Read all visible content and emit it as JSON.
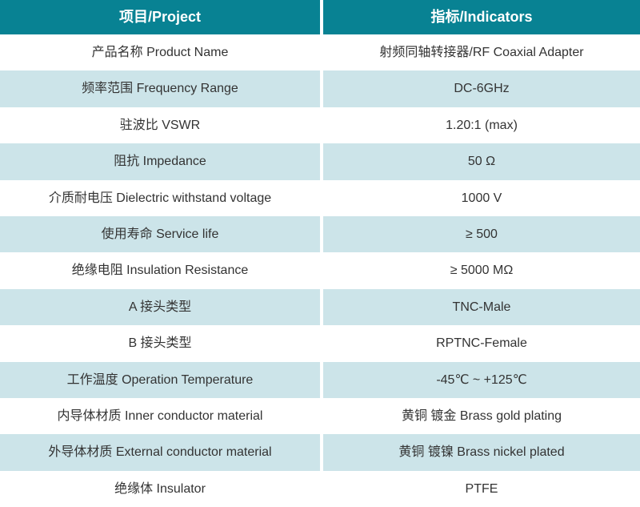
{
  "colors": {
    "header_bg": "#088293",
    "header_text": "#ffffff",
    "alt_row_bg": "#cce4e9",
    "body_text": "#333333",
    "divider": "#ffffff"
  },
  "table": {
    "header": {
      "project": "项目/Project",
      "indicator": "指标/Indicators"
    },
    "rows": [
      {
        "project": "产品名称 Product Name",
        "indicator": "射频同轴转接器/RF Coaxial Adapter"
      },
      {
        "project": "频率范围 Frequency Range",
        "indicator": "DC-6GHz"
      },
      {
        "project": "驻波比 VSWR",
        "indicator": "1.20:1 (max)"
      },
      {
        "project": "阻抗 Impedance",
        "indicator": "50 Ω"
      },
      {
        "project": "介质耐电压 Dielectric withstand voltage",
        "indicator": "1000 V"
      },
      {
        "project": "使用寿命 Service life",
        "indicator": "≥ 500"
      },
      {
        "project": "绝缘电阻 Insulation Resistance",
        "indicator": "≥ 5000 MΩ"
      },
      {
        "project": "A 接头类型",
        "indicator": "TNC-Male"
      },
      {
        "project": "B 接头类型",
        "indicator": "RPTNC-Female"
      },
      {
        "project": "工作温度 Operation Temperature",
        "indicator": "-45℃ ~ +125℃"
      },
      {
        "project": "内导体材质 Inner conductor material",
        "indicator": "黄铜 镀金 Brass gold plating"
      },
      {
        "project": "外导体材质 External conductor material",
        "indicator": "黄铜 镀镍 Brass nickel plated"
      },
      {
        "project": "绝缘体 Insulator",
        "indicator": "PTFE"
      }
    ]
  }
}
